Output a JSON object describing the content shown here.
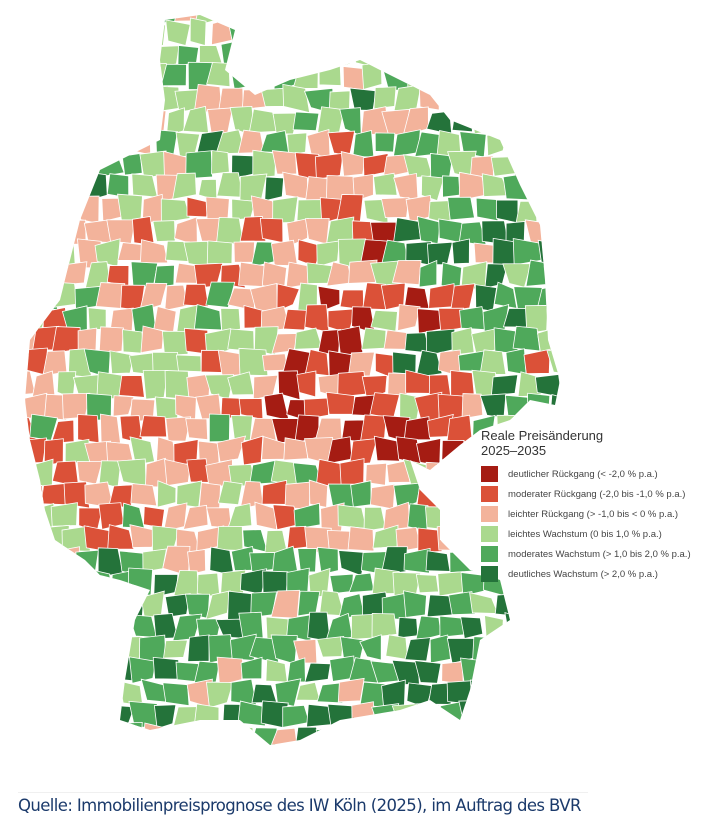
{
  "legend": {
    "title_line1": "Reale Preisänderung",
    "title_line2": "2025–2035",
    "items": [
      {
        "label": "deutlicher Rückgang (< -2,0 % p.a.)",
        "color": "#a51c13"
      },
      {
        "label": "moderater Rückgang (-2,0 bis -1,0 % p.a.)",
        "color": "#db5138"
      },
      {
        "label": "leichter Rückgang (> -1,0  bis < 0 % p.a.)",
        "color": "#f3b39b"
      },
      {
        "label": "leichtes Wachstum (0 bis 1,0 % p.a.)",
        "color": "#aad98e"
      },
      {
        "label": "moderates Wachstum (> 1,0 bis 2,0 % p.a.)",
        "color": "#4fa95b"
      },
      {
        "label": "deutliches Wachstum (> 2,0 % p.a.)",
        "color": "#24733a"
      }
    ]
  },
  "source": "Quelle: Immobilienpreisprognose des IW Köln (2025), im Auftrag des BVR"
}
